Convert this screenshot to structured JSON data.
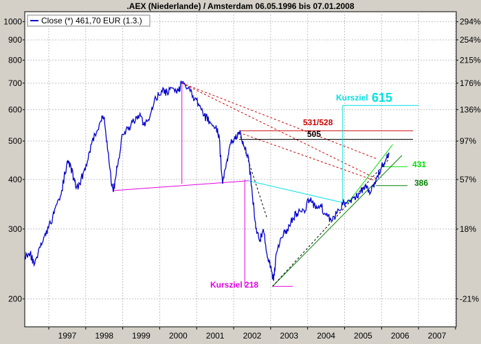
{
  "chart_data": {
    "type": "line",
    "title": ".AEX (Niederlande) / Amsterdam 06.05.1996  bis 07.01.2008",
    "legend": {
      "label": "Close (*) 461,70 EUR (1.3.)",
      "placement": "top-left"
    },
    "y_scale": "log",
    "ylim": [
      170,
      1060
    ],
    "xlim": [
      1996.35,
      2008.02
    ],
    "y_ticks_left": [
      "1000",
      "900",
      "800",
      "700",
      "600",
      "500",
      "400",
      "300",
      "200"
    ],
    "y_ticks_right": [
      "294%",
      "254%",
      "215%",
      "176%",
      "136%",
      "97%",
      "57%",
      "18%",
      "-21%"
    ],
    "x_tick_labels": [
      "1997",
      "1998",
      "1999",
      "2000",
      "2001",
      "2002",
      "2003",
      "2004",
      "2005",
      "2006",
      "2007"
    ],
    "grid": true,
    "series": [
      {
        "name": "Close (*) 461,70 EUR (1.3.)",
        "color": "#0000cc",
        "points": [
          [
            1996.35,
            255
          ],
          [
            1996.5,
            262
          ],
          [
            1996.6,
            243
          ],
          [
            1996.75,
            270
          ],
          [
            1996.9,
            292
          ],
          [
            1997.05,
            310
          ],
          [
            1997.2,
            345
          ],
          [
            1997.35,
            375
          ],
          [
            1997.5,
            445
          ],
          [
            1997.6,
            430
          ],
          [
            1997.7,
            395
          ],
          [
            1997.8,
            380
          ],
          [
            1997.95,
            420
          ],
          [
            1998.1,
            470
          ],
          [
            1998.25,
            520
          ],
          [
            1998.4,
            560
          ],
          [
            1998.5,
            575
          ],
          [
            1998.6,
            470
          ],
          [
            1998.7,
            385
          ],
          [
            1998.75,
            375
          ],
          [
            1998.85,
            430
          ],
          [
            1999.0,
            520
          ],
          [
            1999.15,
            535
          ],
          [
            1999.3,
            560
          ],
          [
            1999.45,
            580
          ],
          [
            1999.6,
            545
          ],
          [
            1999.75,
            585
          ],
          [
            1999.9,
            640
          ],
          [
            2000.05,
            670
          ],
          [
            2000.2,
            665
          ],
          [
            2000.35,
            680
          ],
          [
            2000.5,
            670
          ],
          [
            2000.6,
            700
          ],
          [
            2000.75,
            680
          ],
          [
            2000.9,
            650
          ],
          [
            2001.05,
            620
          ],
          [
            2001.2,
            580
          ],
          [
            2001.35,
            560
          ],
          [
            2001.5,
            540
          ],
          [
            2001.6,
            520
          ],
          [
            2001.7,
            390
          ],
          [
            2001.8,
            440
          ],
          [
            2001.9,
            490
          ],
          [
            2002.05,
            505
          ],
          [
            2002.15,
            525
          ],
          [
            2002.25,
            500
          ],
          [
            2002.4,
            455
          ],
          [
            2002.5,
            370
          ],
          [
            2002.6,
            300
          ],
          [
            2002.7,
            280
          ],
          [
            2002.8,
            300
          ],
          [
            2002.9,
            260
          ],
          [
            2003.0,
            240
          ],
          [
            2003.08,
            222
          ],
          [
            2003.15,
            260
          ],
          [
            2003.3,
            285
          ],
          [
            2003.45,
            300
          ],
          [
            2003.6,
            320
          ],
          [
            2003.75,
            330
          ],
          [
            2003.9,
            335
          ],
          [
            2004.05,
            355
          ],
          [
            2004.2,
            345
          ],
          [
            2004.35,
            345
          ],
          [
            2004.5,
            325
          ],
          [
            2004.65,
            315
          ],
          [
            2004.8,
            330
          ],
          [
            2004.95,
            345
          ],
          [
            2005.1,
            355
          ],
          [
            2005.25,
            360
          ],
          [
            2005.4,
            368
          ],
          [
            2005.55,
            385
          ],
          [
            2005.7,
            370
          ],
          [
            2005.85,
            400
          ],
          [
            2006.0,
            430
          ],
          [
            2006.12,
            450
          ],
          [
            2006.2,
            462
          ]
        ]
      }
    ],
    "annotations": [
      {
        "text": "Kursziel",
        "color": "#00e0e0"
      },
      {
        "text": "615",
        "color": "#00e0e0"
      },
      {
        "text": "531/528",
        "color": "#cc0000"
      },
      {
        "text": "505",
        "color": "#000000"
      },
      {
        "text": "431",
        "color": "#00e000"
      },
      {
        "text": "386",
        "color": "#008000"
      },
      {
        "text": "Kursziel 218",
        "color": "#e000e0"
      }
    ],
    "lines": [
      {
        "style": "dashed",
        "color": "#cc0000",
        "from": [
          2000.6,
          700
        ],
        "to": [
          2005.9,
          400
        ]
      },
      {
        "style": "dashed",
        "color": "#cc0000",
        "from": [
          2000.6,
          700
        ],
        "to": [
          2005.9,
          450
        ]
      },
      {
        "style": "dashed",
        "color": "#cc0000",
        "from": [
          2002.15,
          525
        ],
        "to": [
          2005.9,
          395
        ]
      },
      {
        "style": "dashed",
        "color": "#000000",
        "from": [
          2002.15,
          525
        ],
        "to": [
          2002.9,
          320
        ]
      },
      {
        "style": "solid",
        "color": "#000000",
        "from": [
          2002.15,
          505
        ],
        "to": [
          2006.85,
          505
        ]
      },
      {
        "style": "solid",
        "color": "#cc0000",
        "from": [
          2002.15,
          531
        ],
        "to": [
          2006.85,
          531
        ]
      },
      {
        "style": "solid",
        "color": "#00e0e0",
        "from": [
          2004.95,
          615
        ],
        "to": [
          2007.0,
          615
        ]
      },
      {
        "style": "solid",
        "color": "#00e0e0",
        "from": [
          2004.95,
          350
        ],
        "to": [
          2004.95,
          615
        ]
      },
      {
        "style": "solid",
        "color": "#00e0e0",
        "from": [
          2002.4,
          397
        ],
        "to": [
          2005.05,
          348
        ]
      },
      {
        "style": "solid",
        "color": "#00e000",
        "from": [
          2006.0,
          431
        ],
        "to": [
          2006.7,
          431
        ]
      },
      {
        "style": "solid",
        "color": "#008000",
        "from": [
          2005.85,
          386
        ],
        "to": [
          2006.7,
          386
        ]
      },
      {
        "style": "solid",
        "color": "#e000e0",
        "from": [
          1998.75,
          375
        ],
        "to": [
          2002.4,
          397
        ]
      },
      {
        "style": "solid",
        "color": "#e000e0",
        "from": [
          2000.6,
          390
        ],
        "to": [
          2000.6,
          700
        ]
      },
      {
        "style": "solid",
        "color": "#e000e0",
        "from": [
          2002.3,
          215
        ],
        "to": [
          2002.3,
          400
        ]
      },
      {
        "style": "solid",
        "color": "#e000e0",
        "from": [
          2003.05,
          215
        ],
        "to": [
          2003.6,
          215
        ]
      },
      {
        "style": "solid",
        "color": "#008000",
        "from": [
          2003.05,
          215
        ],
        "to": [
          2006.55,
          460
        ]
      },
      {
        "style": "solid",
        "color": "#00e000",
        "from": [
          2005.1,
          350
        ],
        "to": [
          2006.3,
          490
        ]
      },
      {
        "style": "dashed",
        "color": "#000000",
        "from": [
          2003.05,
          215
        ],
        "to": [
          2006.2,
          450
        ]
      }
    ]
  }
}
